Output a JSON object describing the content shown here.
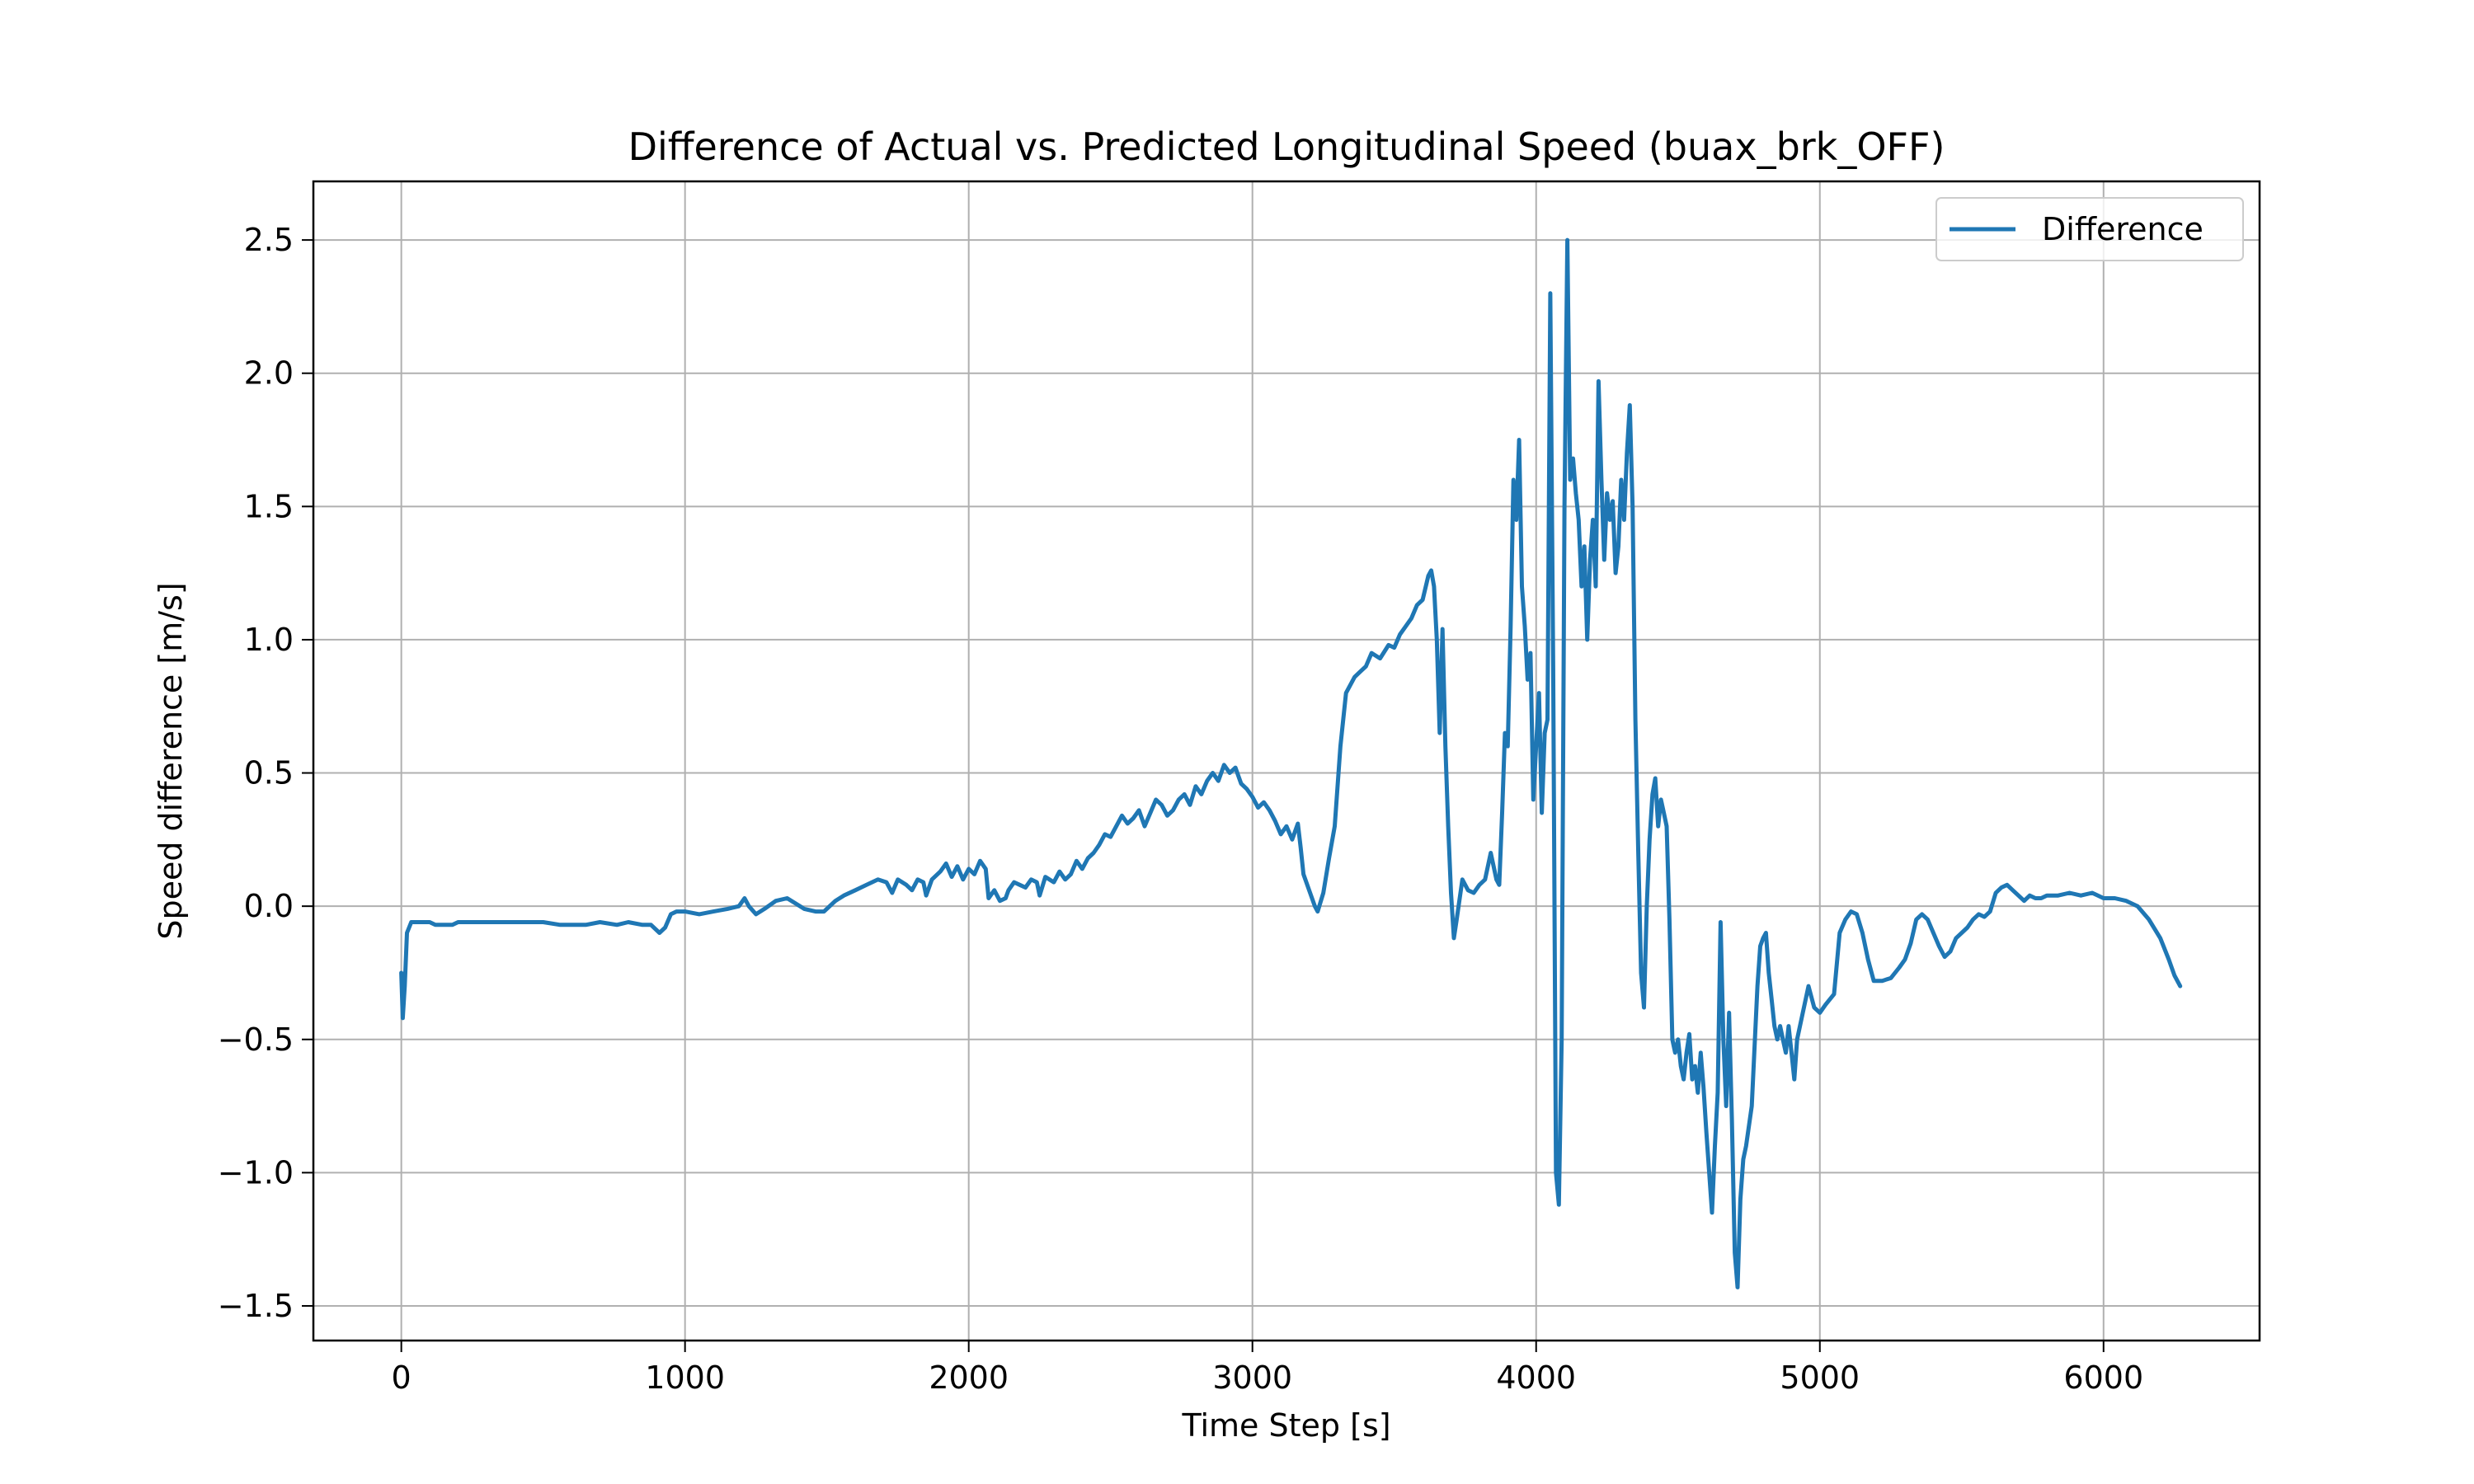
{
  "chart_data": {
    "type": "line",
    "title": "Difference of Actual vs. Predicted Longitudinal Speed (buax_brk_OFF)",
    "xlabel": "Time Step [s]",
    "ylabel": "Speed difference [m/s]",
    "xlim": [
      -310,
      6550
    ],
    "ylim": [
      -1.63,
      2.72
    ],
    "x_ticks": [
      0,
      1000,
      2000,
      3000,
      4000,
      5000,
      6000
    ],
    "x_tick_labels": [
      "0",
      "1000",
      "2000",
      "3000",
      "4000",
      "5000",
      "6000"
    ],
    "y_ticks": [
      -1.5,
      -1.0,
      -0.5,
      0.0,
      0.5,
      1.0,
      1.5,
      2.0,
      2.5
    ],
    "y_tick_labels": [
      "−1.5",
      "−1.0",
      "−0.5",
      "0.0",
      "0.5",
      "1.0",
      "1.5",
      "2.0",
      "2.5"
    ],
    "grid": true,
    "legend_position": "top-right",
    "series": [
      {
        "name": "Difference",
        "color": "#1f77b4",
        "points": [
          [
            0,
            -0.25
          ],
          [
            5,
            -0.42
          ],
          [
            12,
            -0.3
          ],
          [
            20,
            -0.1
          ],
          [
            35,
            -0.06
          ],
          [
            60,
            -0.06
          ],
          [
            100,
            -0.06
          ],
          [
            120,
            -0.07
          ],
          [
            180,
            -0.07
          ],
          [
            200,
            -0.06
          ],
          [
            300,
            -0.06
          ],
          [
            400,
            -0.06
          ],
          [
            500,
            -0.06
          ],
          [
            560,
            -0.07
          ],
          [
            650,
            -0.07
          ],
          [
            700,
            -0.06
          ],
          [
            760,
            -0.07
          ],
          [
            800,
            -0.06
          ],
          [
            850,
            -0.07
          ],
          [
            880,
            -0.07
          ],
          [
            910,
            -0.1
          ],
          [
            930,
            -0.08
          ],
          [
            950,
            -0.03
          ],
          [
            970,
            -0.02
          ],
          [
            1000,
            -0.02
          ],
          [
            1050,
            -0.03
          ],
          [
            1100,
            -0.02
          ],
          [
            1150,
            -0.01
          ],
          [
            1190,
            0.0
          ],
          [
            1210,
            0.03
          ],
          [
            1225,
            0.0
          ],
          [
            1250,
            -0.03
          ],
          [
            1280,
            -0.01
          ],
          [
            1320,
            0.02
          ],
          [
            1360,
            0.03
          ],
          [
            1390,
            0.01
          ],
          [
            1420,
            -0.01
          ],
          [
            1460,
            -0.02
          ],
          [
            1490,
            -0.02
          ],
          [
            1530,
            0.02
          ],
          [
            1560,
            0.04
          ],
          [
            1600,
            0.06
          ],
          [
            1640,
            0.08
          ],
          [
            1680,
            0.1
          ],
          [
            1710,
            0.09
          ],
          [
            1730,
            0.05
          ],
          [
            1750,
            0.1
          ],
          [
            1780,
            0.08
          ],
          [
            1800,
            0.06
          ],
          [
            1820,
            0.1
          ],
          [
            1840,
            0.09
          ],
          [
            1850,
            0.04
          ],
          [
            1870,
            0.1
          ],
          [
            1900,
            0.13
          ],
          [
            1920,
            0.16
          ],
          [
            1940,
            0.11
          ],
          [
            1960,
            0.15
          ],
          [
            1980,
            0.1
          ],
          [
            2000,
            0.14
          ],
          [
            2020,
            0.12
          ],
          [
            2040,
            0.17
          ],
          [
            2060,
            0.14
          ],
          [
            2070,
            0.03
          ],
          [
            2090,
            0.06
          ],
          [
            2110,
            0.02
          ],
          [
            2130,
            0.03
          ],
          [
            2140,
            0.06
          ],
          [
            2160,
            0.09
          ],
          [
            2180,
            0.08
          ],
          [
            2200,
            0.07
          ],
          [
            2220,
            0.1
          ],
          [
            2240,
            0.09
          ],
          [
            2250,
            0.04
          ],
          [
            2270,
            0.11
          ],
          [
            2300,
            0.09
          ],
          [
            2320,
            0.13
          ],
          [
            2340,
            0.1
          ],
          [
            2360,
            0.12
          ],
          [
            2380,
            0.17
          ],
          [
            2400,
            0.14
          ],
          [
            2420,
            0.18
          ],
          [
            2440,
            0.2
          ],
          [
            2460,
            0.23
          ],
          [
            2480,
            0.27
          ],
          [
            2500,
            0.26
          ],
          [
            2520,
            0.3
          ],
          [
            2540,
            0.34
          ],
          [
            2560,
            0.31
          ],
          [
            2580,
            0.33
          ],
          [
            2600,
            0.36
          ],
          [
            2620,
            0.3
          ],
          [
            2640,
            0.35
          ],
          [
            2660,
            0.4
          ],
          [
            2680,
            0.38
          ],
          [
            2700,
            0.34
          ],
          [
            2720,
            0.36
          ],
          [
            2740,
            0.4
          ],
          [
            2760,
            0.42
          ],
          [
            2780,
            0.38
          ],
          [
            2800,
            0.45
          ],
          [
            2820,
            0.42
          ],
          [
            2840,
            0.47
          ],
          [
            2860,
            0.5
          ],
          [
            2880,
            0.47
          ],
          [
            2900,
            0.53
          ],
          [
            2920,
            0.5
          ],
          [
            2940,
            0.52
          ],
          [
            2960,
            0.46
          ],
          [
            2980,
            0.44
          ],
          [
            3000,
            0.41
          ],
          [
            3020,
            0.37
          ],
          [
            3040,
            0.39
          ],
          [
            3060,
            0.36
          ],
          [
            3080,
            0.32
          ],
          [
            3100,
            0.27
          ],
          [
            3120,
            0.3
          ],
          [
            3140,
            0.25
          ],
          [
            3160,
            0.31
          ],
          [
            3170,
            0.22
          ],
          [
            3180,
            0.12
          ],
          [
            3200,
            0.06
          ],
          [
            3220,
            0.0
          ],
          [
            3230,
            -0.02
          ],
          [
            3250,
            0.05
          ],
          [
            3270,
            0.18
          ],
          [
            3290,
            0.3
          ],
          [
            3310,
            0.6
          ],
          [
            3330,
            0.8
          ],
          [
            3360,
            0.86
          ],
          [
            3380,
            0.88
          ],
          [
            3400,
            0.9
          ],
          [
            3420,
            0.95
          ],
          [
            3450,
            0.93
          ],
          [
            3480,
            0.98
          ],
          [
            3500,
            0.97
          ],
          [
            3520,
            1.02
          ],
          [
            3540,
            1.05
          ],
          [
            3560,
            1.08
          ],
          [
            3580,
            1.13
          ],
          [
            3600,
            1.15
          ],
          [
            3620,
            1.24
          ],
          [
            3630,
            1.26
          ],
          [
            3640,
            1.2
          ],
          [
            3650,
            1.0
          ],
          [
            3660,
            0.65
          ],
          [
            3670,
            1.04
          ],
          [
            3680,
            0.6
          ],
          [
            3690,
            0.3
          ],
          [
            3700,
            0.05
          ],
          [
            3710,
            -0.12
          ],
          [
            3720,
            -0.05
          ],
          [
            3740,
            0.1
          ],
          [
            3760,
            0.06
          ],
          [
            3780,
            0.05
          ],
          [
            3800,
            0.08
          ],
          [
            3820,
            0.1
          ],
          [
            3840,
            0.2
          ],
          [
            3860,
            0.1
          ],
          [
            3870,
            0.08
          ],
          [
            3880,
            0.35
          ],
          [
            3890,
            0.65
          ],
          [
            3900,
            0.6
          ],
          [
            3910,
            1.05
          ],
          [
            3920,
            1.6
          ],
          [
            3930,
            1.45
          ],
          [
            3940,
            1.75
          ],
          [
            3950,
            1.2
          ],
          [
            3960,
            1.05
          ],
          [
            3970,
            0.85
          ],
          [
            3980,
            0.95
          ],
          [
            3990,
            0.4
          ],
          [
            4000,
            0.6
          ],
          [
            4010,
            0.8
          ],
          [
            4020,
            0.35
          ],
          [
            4030,
            0.65
          ],
          [
            4040,
            0.7
          ],
          [
            4050,
            2.3
          ],
          [
            4060,
            0.9
          ],
          [
            4070,
            -1.0
          ],
          [
            4080,
            -1.12
          ],
          [
            4090,
            -0.5
          ],
          [
            4100,
            1.5
          ],
          [
            4110,
            2.5
          ],
          [
            4120,
            1.6
          ],
          [
            4130,
            1.68
          ],
          [
            4140,
            1.55
          ],
          [
            4150,
            1.45
          ],
          [
            4160,
            1.2
          ],
          [
            4170,
            1.35
          ],
          [
            4180,
            1.0
          ],
          [
            4190,
            1.3
          ],
          [
            4200,
            1.45
          ],
          [
            4210,
            1.2
          ],
          [
            4220,
            1.97
          ],
          [
            4230,
            1.6
          ],
          [
            4240,
            1.3
          ],
          [
            4250,
            1.55
          ],
          [
            4260,
            1.45
          ],
          [
            4270,
            1.52
          ],
          [
            4280,
            1.25
          ],
          [
            4290,
            1.35
          ],
          [
            4300,
            1.6
          ],
          [
            4310,
            1.45
          ],
          [
            4320,
            1.7
          ],
          [
            4330,
            1.88
          ],
          [
            4340,
            1.5
          ],
          [
            4350,
            0.7
          ],
          [
            4360,
            0.2
          ],
          [
            4370,
            -0.25
          ],
          [
            4380,
            -0.38
          ],
          [
            4390,
            0.0
          ],
          [
            4400,
            0.25
          ],
          [
            4410,
            0.42
          ],
          [
            4420,
            0.48
          ],
          [
            4430,
            0.3
          ],
          [
            4440,
            0.4
          ],
          [
            4450,
            0.35
          ],
          [
            4460,
            0.3
          ],
          [
            4470,
            -0.05
          ],
          [
            4480,
            -0.5
          ],
          [
            4490,
            -0.55
          ],
          [
            4500,
            -0.5
          ],
          [
            4510,
            -0.6
          ],
          [
            4520,
            -0.65
          ],
          [
            4530,
            -0.55
          ],
          [
            4540,
            -0.48
          ],
          [
            4550,
            -0.65
          ],
          [
            4560,
            -0.6
          ],
          [
            4570,
            -0.7
          ],
          [
            4580,
            -0.55
          ],
          [
            4590,
            -0.68
          ],
          [
            4600,
            -0.85
          ],
          [
            4620,
            -1.15
          ],
          [
            4630,
            -0.9
          ],
          [
            4640,
            -0.7
          ],
          [
            4650,
            -0.06
          ],
          [
            4660,
            -0.5
          ],
          [
            4670,
            -0.75
          ],
          [
            4680,
            -0.4
          ],
          [
            4690,
            -0.8
          ],
          [
            4700,
            -1.3
          ],
          [
            4710,
            -1.43
          ],
          [
            4720,
            -1.1
          ],
          [
            4730,
            -0.95
          ],
          [
            4740,
            -0.9
          ],
          [
            4760,
            -0.75
          ],
          [
            4780,
            -0.3
          ],
          [
            4790,
            -0.15
          ],
          [
            4800,
            -0.12
          ],
          [
            4810,
            -0.1
          ],
          [
            4820,
            -0.25
          ],
          [
            4830,
            -0.35
          ],
          [
            4840,
            -0.45
          ],
          [
            4850,
            -0.5
          ],
          [
            4860,
            -0.45
          ],
          [
            4870,
            -0.5
          ],
          [
            4880,
            -0.55
          ],
          [
            4890,
            -0.45
          ],
          [
            4900,
            -0.55
          ],
          [
            4910,
            -0.65
          ],
          [
            4920,
            -0.5
          ],
          [
            4940,
            -0.4
          ],
          [
            4960,
            -0.3
          ],
          [
            4980,
            -0.38
          ],
          [
            5000,
            -0.4
          ],
          [
            5020,
            -0.37
          ],
          [
            5050,
            -0.33
          ],
          [
            5070,
            -0.1
          ],
          [
            5090,
            -0.05
          ],
          [
            5110,
            -0.02
          ],
          [
            5130,
            -0.03
          ],
          [
            5150,
            -0.1
          ],
          [
            5170,
            -0.2
          ],
          [
            5190,
            -0.28
          ],
          [
            5220,
            -0.28
          ],
          [
            5250,
            -0.27
          ],
          [
            5280,
            -0.23
          ],
          [
            5300,
            -0.2
          ],
          [
            5320,
            -0.14
          ],
          [
            5340,
            -0.05
          ],
          [
            5360,
            -0.03
          ],
          [
            5380,
            -0.05
          ],
          [
            5400,
            -0.1
          ],
          [
            5420,
            -0.15
          ],
          [
            5440,
            -0.19
          ],
          [
            5460,
            -0.17
          ],
          [
            5480,
            -0.12
          ],
          [
            5500,
            -0.1
          ],
          [
            5520,
            -0.08
          ],
          [
            5540,
            -0.05
          ],
          [
            5560,
            -0.03
          ],
          [
            5580,
            -0.04
          ],
          [
            5600,
            -0.02
          ],
          [
            5620,
            0.05
          ],
          [
            5640,
            0.07
          ],
          [
            5660,
            0.08
          ],
          [
            5680,
            0.06
          ],
          [
            5700,
            0.04
          ],
          [
            5720,
            0.02
          ],
          [
            5740,
            0.04
          ],
          [
            5760,
            0.03
          ],
          [
            5780,
            0.03
          ],
          [
            5800,
            0.04
          ],
          [
            5840,
            0.04
          ],
          [
            5880,
            0.05
          ],
          [
            5920,
            0.04
          ],
          [
            5960,
            0.05
          ],
          [
            6000,
            0.03
          ],
          [
            6040,
            0.03
          ],
          [
            6080,
            0.02
          ],
          [
            6120,
            0.0
          ],
          [
            6160,
            -0.05
          ],
          [
            6200,
            -0.12
          ],
          [
            6230,
            -0.2
          ],
          [
            6250,
            -0.26
          ],
          [
            6270,
            -0.3
          ]
        ]
      }
    ]
  }
}
